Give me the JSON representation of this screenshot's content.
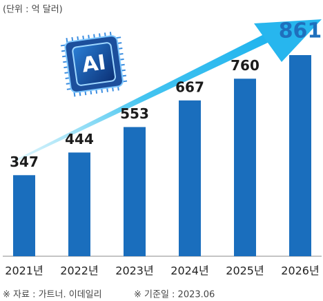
{
  "chart_data": {
    "type": "bar",
    "subtitle": "(단위 : 억 달러)",
    "chip_label": "AI",
    "categories": [
      "2021년",
      "2022년",
      "2023년",
      "2024년",
      "2025년",
      "2026년"
    ],
    "values": [
      347,
      444,
      553,
      667,
      760,
      861
    ],
    "color": "#1a6ebd",
    "highlight_color": "#1f6fbd",
    "sources": [
      "※ 자료 : 가트너. 이데일리",
      "※ 기준일 : 2023.06"
    ]
  }
}
